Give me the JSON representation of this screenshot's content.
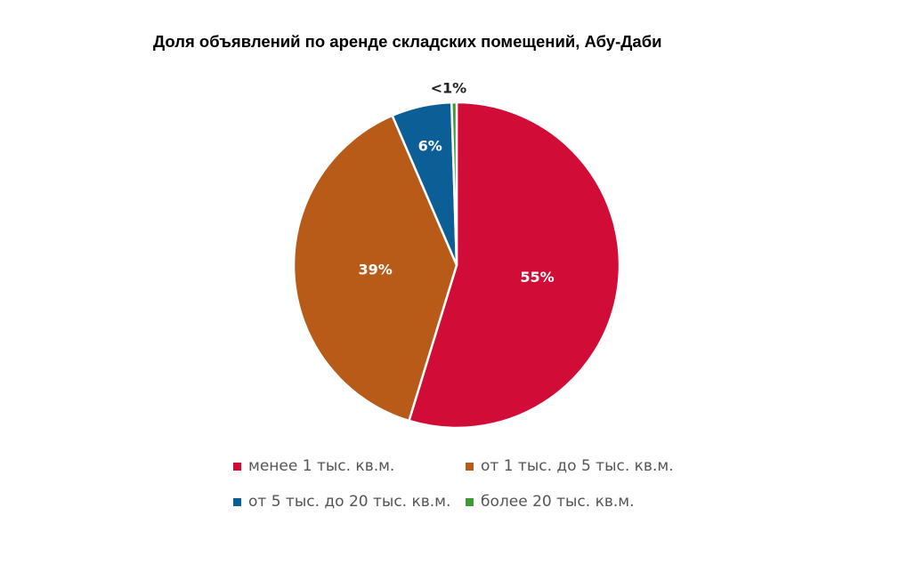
{
  "chart_data": {
    "type": "pie",
    "title": "Доля объявлений по аренде складских помещений, Абу-Даби",
    "slices": [
      {
        "label": "менее 1 тыс. кв.м.",
        "value": 55,
        "display": "55%",
        "color": "#D10C36"
      },
      {
        "label": "от 1 тыс. до 5 тыс. кв.м.",
        "value": 39,
        "display": "39%",
        "color": "#B85A18"
      },
      {
        "label": "от 5 тыс. до 20 тыс. кв.м.",
        "value": 6,
        "display": "6%",
        "color": "#0C5F96"
      },
      {
        "label": "более 20 тыс. кв.м.",
        "value": 0.5,
        "display": "<1%",
        "color": "#3E9A35"
      }
    ],
    "legend_position": "bottom"
  }
}
